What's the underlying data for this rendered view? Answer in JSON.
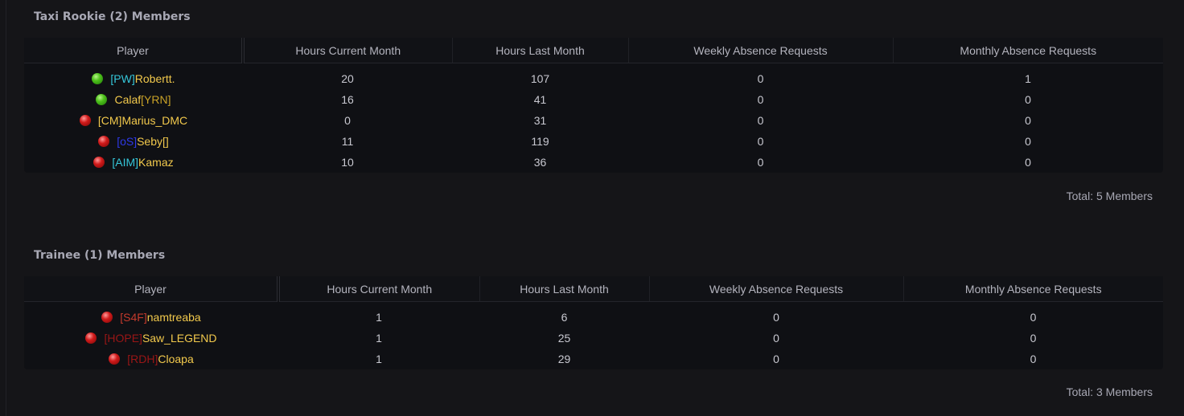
{
  "colors": {
    "background": "#151518",
    "table_bg": "#0f1014",
    "text": "#c8c8d0",
    "name": "#f2c94c",
    "online": "#4fc21c",
    "offline": "#d11b1b"
  },
  "sections": [
    {
      "title": "Taxi Rookie (2) Members",
      "headers": [
        "Player",
        "Hours Current Month",
        "Hours Last Month",
        "Weekly Absence Requests",
        "Monthly Absence Requests"
      ],
      "rows": [
        {
          "status": "online",
          "tag": "[PW]",
          "tag_color": "#35c6d9",
          "name": "Robertt.",
          "hours_current": "20",
          "hours_last": "107",
          "weekly": "0",
          "monthly": "1"
        },
        {
          "status": "online",
          "tag": "",
          "tag_color": "",
          "name": "Calaf",
          "suffix": "[YRN]",
          "suffix_color": "#c9a227",
          "hours_current": "16",
          "hours_last": "41",
          "weekly": "0",
          "monthly": "0"
        },
        {
          "status": "offline",
          "tag": "[CM]",
          "tag_color": "#f2c94c",
          "name": "Marius_DMC",
          "hours_current": "0",
          "hours_last": "31",
          "weekly": "0",
          "monthly": "0"
        },
        {
          "status": "offline",
          "tag": "[oS]",
          "tag_color": "#2f39e8",
          "name": "Seby[]",
          "hours_current": "11",
          "hours_last": "119",
          "weekly": "0",
          "monthly": "0"
        },
        {
          "status": "offline",
          "tag": "[AIM]",
          "tag_color": "#35c6d9",
          "name": "Kamaz",
          "hours_current": "10",
          "hours_last": "36",
          "weekly": "0",
          "monthly": "0"
        }
      ],
      "total": "Total: 5 Members"
    },
    {
      "title": "Trainee (1) Members",
      "headers": [
        "Player",
        "Hours Current Month",
        "Hours Last Month",
        "Weekly Absence Requests",
        "Monthly Absence Requests"
      ],
      "rows": [
        {
          "status": "offline",
          "tag": "[S4F]",
          "tag_color": "#c43a2c",
          "name": "namtreaba",
          "hours_current": "1",
          "hours_last": "6",
          "weekly": "0",
          "monthly": "0"
        },
        {
          "status": "offline",
          "tag": "[HOPE]",
          "tag_color": "#9a1616",
          "name": "Saw_LEGEND",
          "hours_current": "1",
          "hours_last": "25",
          "weekly": "0",
          "monthly": "0"
        },
        {
          "status": "offline",
          "tag": "[RDH]",
          "tag_color": "#9a1616",
          "name": "Cloapa",
          "hours_current": "1",
          "hours_last": "29",
          "weekly": "0",
          "monthly": "0"
        }
      ],
      "total": "Total: 3 Members"
    }
  ]
}
